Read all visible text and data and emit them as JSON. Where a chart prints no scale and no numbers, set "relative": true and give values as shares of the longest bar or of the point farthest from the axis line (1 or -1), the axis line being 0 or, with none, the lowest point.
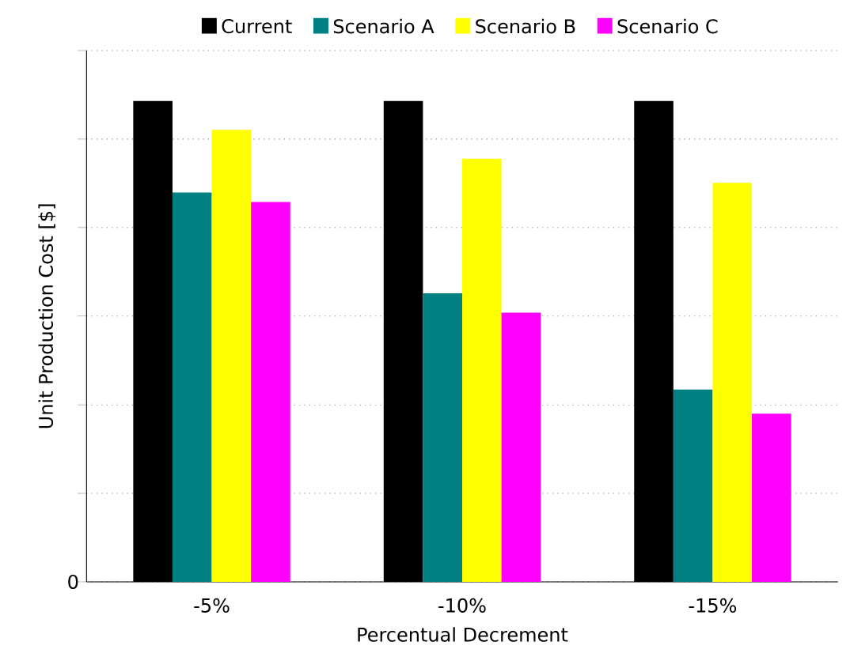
{
  "chart_data": {
    "type": "bar",
    "relative": true,
    "xlabel": "Percentual Decrement",
    "ylabel": "Unit Production Cost [$]",
    "categories": [
      "-5%",
      "-10%",
      "-15%"
    ],
    "series": [
      {
        "name": "Current",
        "color": "#000000",
        "values": [
          1,
          1,
          1
        ]
      },
      {
        "name": "Scenario A",
        "color": "#008080",
        "values": [
          0.81,
          0.6,
          0.4
        ]
      },
      {
        "name": "Scenario B",
        "color": "#ffff00",
        "values": [
          0.94,
          0.88,
          0.83
        ]
      },
      {
        "name": "Scenario C",
        "color": "#ff00ff",
        "values": [
          0.79,
          0.56,
          0.35
        ]
      }
    ],
    "annotations": [
      "0"
    ],
    "grid": "y",
    "legend": "top"
  }
}
